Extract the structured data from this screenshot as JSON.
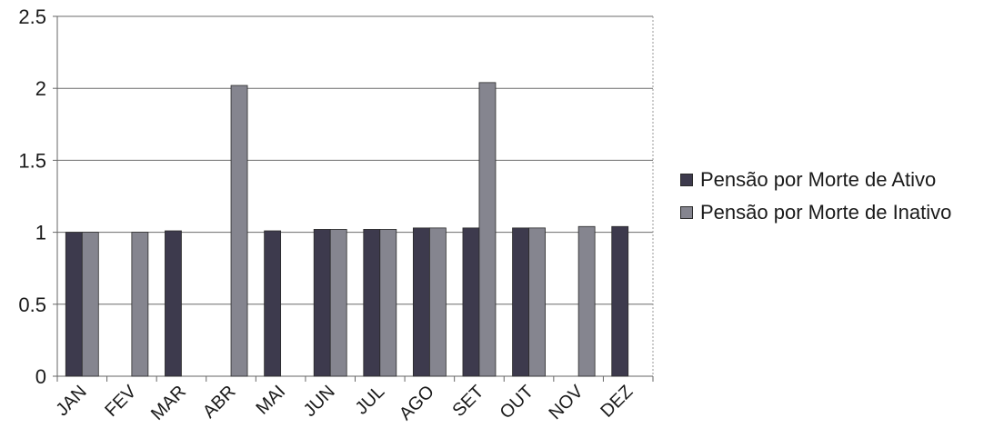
{
  "chart_data": {
    "type": "bar",
    "title": "",
    "xlabel": "",
    "ylabel": "",
    "categories": [
      "JAN",
      "FEV",
      "MAR",
      "ABR",
      "MAI",
      "JUN",
      "JUL",
      "AGO",
      "SET",
      "OUT",
      "NOV",
      "DEZ"
    ],
    "yticks": [
      "0",
      "0.5",
      "1",
      "1.5",
      "2",
      "2.5"
    ],
    "ylim": [
      0,
      2.5
    ],
    "grid": true,
    "legend_position": "right",
    "series": [
      {
        "name": "Pensão por Morte de Ativo",
        "color": "#3d3a4d",
        "values": [
          1,
          null,
          1.01,
          null,
          1.01,
          1.02,
          1.02,
          1.03,
          1.03,
          1.03,
          null,
          1.04
        ]
      },
      {
        "name": "Pensão por Morte de Inativo",
        "color": "#85858f",
        "values": [
          1,
          1,
          null,
          2.02,
          null,
          1.02,
          1.02,
          1.03,
          2.04,
          1.03,
          1.04,
          null
        ]
      }
    ]
  }
}
